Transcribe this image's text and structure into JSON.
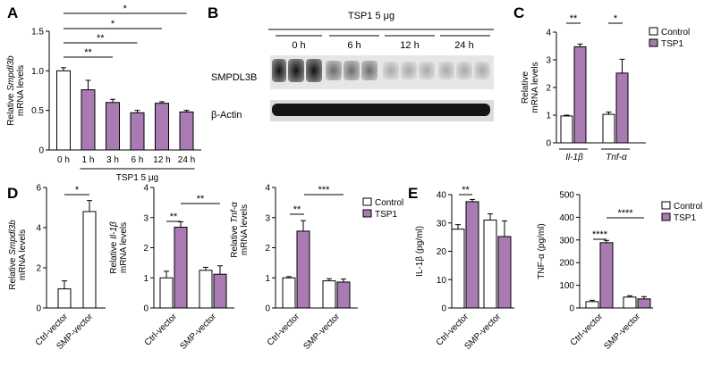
{
  "colors": {
    "control": "#ffffff",
    "tsp1": "#a97bb2",
    "stroke": "#000000"
  },
  "panels": {
    "A": "A",
    "B": "B",
    "C": "C",
    "D": "D",
    "E": "E"
  },
  "blot": {
    "treatment": "TSP1 5 μg",
    "times": [
      "0 h",
      "6 h",
      "12 h",
      "24 h"
    ],
    "bands": [
      "SMPDL3B",
      "β-Actin"
    ]
  },
  "chart_data": [
    {
      "id": "A",
      "type": "bar",
      "categories": [
        "0 h",
        "1 h",
        "3 h",
        "6 h",
        "12 h",
        "24 h"
      ],
      "values": [
        1.0,
        0.76,
        0.6,
        0.47,
        0.59,
        0.48
      ],
      "errors": [
        0.04,
        0.12,
        0.04,
        0.03,
        0.02,
        0.02
      ],
      "bar_colors": [
        "control",
        "tsp1",
        "tsp1",
        "tsp1",
        "tsp1",
        "tsp1"
      ],
      "ylabel_line1": "Relative ",
      "ylabel_italic": "Smpdl3b",
      "ylabel_line2": "mRNA levels",
      "xlabel": "TSP1 5 μg",
      "ylim": [
        0,
        1.5
      ],
      "yticks": [
        "0",
        "0.5",
        "1.0",
        "1.5"
      ],
      "brackets": [
        {
          "from": 0,
          "to": 5,
          "label": "*"
        },
        {
          "from": 0,
          "to": 4,
          "label": "*"
        },
        {
          "from": 0,
          "to": 3,
          "label": "**"
        },
        {
          "from": 0,
          "to": 2,
          "label": "**"
        }
      ]
    },
    {
      "id": "C",
      "type": "bar",
      "categories": [
        "Il-1β",
        "Tnf-α"
      ],
      "series": [
        {
          "name": "Control",
          "values": [
            0.97,
            1.03
          ],
          "errors": [
            0.03,
            0.08
          ]
        },
        {
          "name": "TSP1",
          "values": [
            3.47,
            2.52
          ],
          "errors": [
            0.1,
            0.5
          ]
        }
      ],
      "ylabel": "Relative",
      "ylabel2": "mRNA levels",
      "ylim": [
        0,
        4
      ],
      "yticks": [
        "0",
        "1",
        "2",
        "3",
        "4"
      ],
      "legend": [
        "Control",
        "TSP1"
      ],
      "brackets": [
        {
          "group": 0,
          "label": "**"
        },
        {
          "group": 1,
          "label": "*"
        }
      ]
    },
    {
      "id": "D1",
      "type": "bar",
      "categories": [
        "Ctrl-vector",
        "SMP-vector"
      ],
      "values": [
        0.95,
        4.8
      ],
      "errors": [
        0.4,
        0.55
      ],
      "ylabel_line1": "Relative ",
      "ylabel_italic": "Smpdl3b",
      "ylabel_line2": "mRNA levels",
      "ylim": [
        0,
        6
      ],
      "yticks": [
        "0",
        "2",
        "4",
        "6"
      ],
      "brackets": [
        {
          "from": 0,
          "to": 1,
          "label": "*"
        }
      ]
    },
    {
      "id": "D2",
      "type": "bar",
      "categories": [
        "Ctrl-vector",
        "SMP-vector"
      ],
      "series": [
        {
          "name": "Control",
          "values": [
            1.0,
            1.25
          ],
          "errors": [
            0.22,
            0.1
          ]
        },
        {
          "name": "TSP1",
          "values": [
            2.68,
            1.12
          ],
          "errors": [
            0.18,
            0.28
          ]
        }
      ],
      "ylabel_line1": "Relative ",
      "ylabel_italic": "Il-1β",
      "ylabel_line2": "mRNA levels",
      "ylim": [
        0,
        4
      ],
      "yticks": [
        "0",
        "1",
        "2",
        "3",
        "4"
      ],
      "brackets": [
        {
          "label": "**"
        },
        {
          "label": "**"
        }
      ]
    },
    {
      "id": "D3",
      "type": "bar",
      "categories": [
        "Ctrl-vector",
        "SMP-vector"
      ],
      "series": [
        {
          "name": "Control",
          "values": [
            1.0,
            0.9
          ],
          "errors": [
            0.04,
            0.07
          ]
        },
        {
          "name": "TSP1",
          "values": [
            2.55,
            0.86
          ],
          "errors": [
            0.35,
            0.1
          ]
        }
      ],
      "ylabel_line1": "Relative ",
      "ylabel_italic": "Tnf-α",
      "ylabel_line2": "mRNA levels",
      "ylim": [
        0,
        4
      ],
      "yticks": [
        "0",
        "1",
        "2",
        "3",
        "4"
      ],
      "legend": [
        "Control",
        "TSP1"
      ],
      "brackets": [
        {
          "label": "**"
        },
        {
          "label": "***"
        }
      ]
    },
    {
      "id": "E1",
      "type": "bar",
      "categories": [
        "Ctrl-vector",
        "SMP-vector"
      ],
      "series": [
        {
          "name": "Control",
          "values": [
            27.8,
            31.0
          ],
          "errors": [
            1.6,
            2.2
          ]
        },
        {
          "name": "TSP1",
          "values": [
            37.5,
            25.2
          ],
          "errors": [
            0.8,
            5.5
          ]
        }
      ],
      "ylabel": "IL-1β (pg/ml)",
      "ylim": [
        0,
        40
      ],
      "yticks": [
        "0",
        "10",
        "20",
        "30",
        "40"
      ],
      "brackets": [
        {
          "label": "**"
        }
      ]
    },
    {
      "id": "E2",
      "type": "bar",
      "categories": [
        "Ctrl-vector",
        "SMP-vector"
      ],
      "series": [
        {
          "name": "Control",
          "values": [
            28,
            48
          ],
          "errors": [
            6,
            6
          ]
        },
        {
          "name": "TSP1",
          "values": [
            288,
            40
          ],
          "errors": [
            10,
            10
          ]
        }
      ],
      "ylabel": "TNF-α (pg/ml)",
      "ylim": [
        0,
        500
      ],
      "yticks": [
        "0",
        "100",
        "200",
        "300",
        "400",
        "500"
      ],
      "legend": [
        "Control",
        "TSP1"
      ],
      "brackets": [
        {
          "label": "****"
        },
        {
          "label": "****"
        }
      ]
    }
  ]
}
